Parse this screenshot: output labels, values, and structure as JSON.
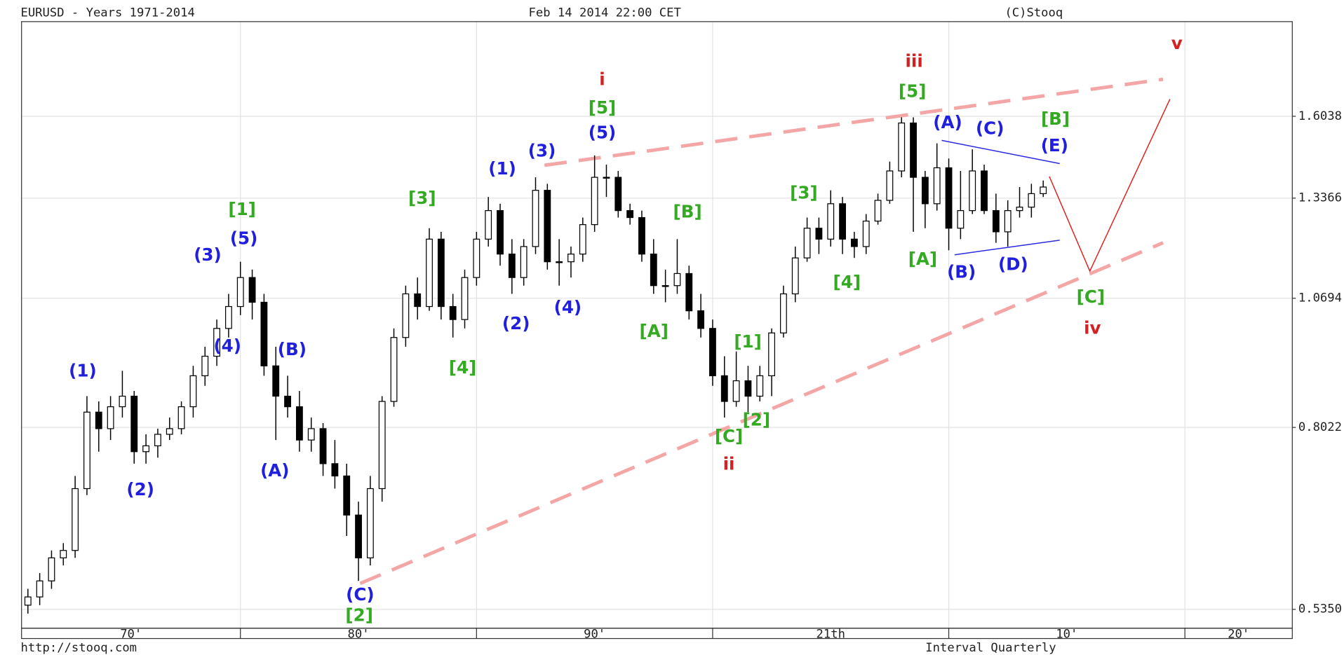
{
  "chart_data": {
    "type": "candlestick",
    "title": "EURUSD - Years 1971-2014",
    "subtitle": "Feb 14 2014 22:00 CET",
    "source": "(C)Stooq",
    "footer_left": "http://stooq.com",
    "footer_right": "Interval Quarterly",
    "log_scale": true,
    "grid": true,
    "up_color": "#ffffff",
    "down_color": "#000000",
    "xlim": [
      1970.73,
      2024.55
    ],
    "xticks": [
      {
        "value": 1970,
        "label": "70'"
      },
      {
        "value": 1980,
        "label": "80'"
      },
      {
        "value": 1990,
        "label": "90'"
      },
      {
        "value": 2000,
        "label": "21th"
      },
      {
        "value": 2010,
        "label": "10'"
      },
      {
        "value": 2020,
        "label": "20'"
      }
    ],
    "ylim": [
      0.513,
      1.98
    ],
    "yticks": [
      {
        "value": 0.535,
        "label": "0.5350"
      },
      0.8022,
      1.0694,
      1.3366,
      1.6038
    ],
    "x": [
      1971,
      1971.5,
      1972,
      1972.5,
      1973,
      1973.5,
      1974,
      1974.5,
      1975,
      1975.5,
      1976,
      1976.5,
      1977,
      1977.5,
      1978,
      1978.5,
      1979,
      1979.5,
      1980,
      1980.5,
      1981,
      1981.5,
      1982,
      1982.5,
      1983,
      1983.5,
      1984,
      1984.5,
      1985,
      1985.5,
      1986,
      1986.5,
      1987,
      1987.5,
      1988,
      1988.5,
      1989,
      1989.5,
      1990,
      1990.5,
      1991,
      1991.5,
      1992,
      1992.5,
      1993,
      1993.5,
      1994,
      1994.5,
      1995,
      1995.5,
      1996,
      1996.5,
      1997,
      1997.5,
      1998,
      1998.5,
      1999,
      1999.5,
      2000,
      2000.5,
      2001,
      2001.5,
      2002,
      2002.5,
      2003,
      2003.5,
      2004,
      2004.5,
      2005,
      2005.5,
      2006,
      2006.5,
      2007,
      2007.5,
      2008,
      2008.5,
      2009,
      2009.5,
      2010,
      2010.5,
      2011,
      2011.5,
      2012,
      2012.5,
      2013,
      2013.5,
      2014
    ],
    "open": [
      0.54,
      0.55,
      0.57,
      0.6,
      0.61,
      0.7,
      0.83,
      0.8,
      0.84,
      0.86,
      0.76,
      0.77,
      0.79,
      0.8,
      0.84,
      0.9,
      0.94,
      1.0,
      1.05,
      1.12,
      1.06,
      0.92,
      0.86,
      0.84,
      0.78,
      0.8,
      0.74,
      0.72,
      0.66,
      0.6,
      0.7,
      0.85,
      0.98,
      1.08,
      1.05,
      1.22,
      1.05,
      1.02,
      1.12,
      1.22,
      1.3,
      1.18,
      1.12,
      1.2,
      1.36,
      1.16,
      1.16,
      1.18,
      1.26,
      1.4,
      1.4,
      1.3,
      1.28,
      1.18,
      1.1,
      1.1,
      1.13,
      1.04,
      1.0,
      0.9,
      0.85,
      0.89,
      0.86,
      0.9,
      0.99,
      1.08,
      1.17,
      1.25,
      1.22,
      1.32,
      1.22,
      1.2,
      1.27,
      1.33,
      1.42,
      1.58,
      1.4,
      1.32,
      1.43,
      1.25,
      1.3,
      1.42,
      1.3,
      1.24,
      1.3,
      1.31,
      1.35
    ],
    "high": [
      0.56,
      0.58,
      0.61,
      0.62,
      0.72,
      0.86,
      0.85,
      0.86,
      0.91,
      0.87,
      0.79,
      0.8,
      0.82,
      0.85,
      0.92,
      0.96,
      1.02,
      1.08,
      1.16,
      1.14,
      1.08,
      0.96,
      0.9,
      0.87,
      0.82,
      0.81,
      0.78,
      0.74,
      0.68,
      0.72,
      0.86,
      1.0,
      1.1,
      1.12,
      1.25,
      1.24,
      1.08,
      1.14,
      1.24,
      1.34,
      1.32,
      1.22,
      1.22,
      1.4,
      1.38,
      1.22,
      1.2,
      1.28,
      1.47,
      1.44,
      1.42,
      1.32,
      1.3,
      1.22,
      1.14,
      1.22,
      1.15,
      1.08,
      1.02,
      0.94,
      0.95,
      0.92,
      0.92,
      1.0,
      1.1,
      1.2,
      1.28,
      1.28,
      1.36,
      1.34,
      1.24,
      1.29,
      1.35,
      1.45,
      1.6,
      1.6,
      1.42,
      1.51,
      1.46,
      1.42,
      1.49,
      1.44,
      1.35,
      1.33,
      1.37,
      1.38,
      1.39
    ],
    "low": [
      0.53,
      0.54,
      0.56,
      0.59,
      0.6,
      0.69,
      0.76,
      0.78,
      0.82,
      0.74,
      0.74,
      0.75,
      0.78,
      0.79,
      0.82,
      0.88,
      0.92,
      0.98,
      1.03,
      1.02,
      0.9,
      0.78,
      0.82,
      0.76,
      0.76,
      0.72,
      0.7,
      0.63,
      0.57,
      0.59,
      0.68,
      0.84,
      0.96,
      1.02,
      1.04,
      1.02,
      0.98,
      1.0,
      1.1,
      1.2,
      1.15,
      1.08,
      1.1,
      1.18,
      1.14,
      1.1,
      1.12,
      1.16,
      1.24,
      1.34,
      1.28,
      1.26,
      1.16,
      1.08,
      1.06,
      1.08,
      1.02,
      0.98,
      0.88,
      0.82,
      0.84,
      0.83,
      0.85,
      0.86,
      0.98,
      1.06,
      1.16,
      1.18,
      1.2,
      1.18,
      1.17,
      1.18,
      1.26,
      1.32,
      1.4,
      1.24,
      1.25,
      1.3,
      1.19,
      1.22,
      1.29,
      1.29,
      1.21,
      1.2,
      1.28,
      1.28,
      1.34
    ],
    "close": [
      0.55,
      0.57,
      0.6,
      0.61,
      0.7,
      0.83,
      0.8,
      0.84,
      0.86,
      0.76,
      0.77,
      0.79,
      0.8,
      0.84,
      0.9,
      0.94,
      1.0,
      1.05,
      1.12,
      1.06,
      0.92,
      0.86,
      0.84,
      0.78,
      0.8,
      0.74,
      0.72,
      0.66,
      0.6,
      0.7,
      0.85,
      0.98,
      1.08,
      1.05,
      1.22,
      1.05,
      1.02,
      1.12,
      1.22,
      1.3,
      1.18,
      1.12,
      1.2,
      1.36,
      1.16,
      1.16,
      1.18,
      1.26,
      1.4,
      1.4,
      1.3,
      1.28,
      1.18,
      1.1,
      1.1,
      1.13,
      1.04,
      1.0,
      0.9,
      0.85,
      0.89,
      0.86,
      0.9,
      0.99,
      1.08,
      1.17,
      1.25,
      1.22,
      1.32,
      1.22,
      1.2,
      1.27,
      1.33,
      1.42,
      1.58,
      1.4,
      1.32,
      1.43,
      1.25,
      1.3,
      1.42,
      1.3,
      1.24,
      1.3,
      1.31,
      1.35,
      1.37
    ],
    "annotations": [
      {
        "text": "(1)",
        "color": "#1f1fdd"
      },
      {
        "text": "(2)",
        "color": "#1f1fdd"
      },
      {
        "text": "(3)",
        "color": "#1f1fdd"
      },
      {
        "text": "(5)",
        "color": "#1f1fdd"
      },
      {
        "text": "(4)",
        "color": "#1f1fdd"
      },
      {
        "text": "(B)",
        "color": "#1f1fdd"
      },
      {
        "text": "(A)",
        "color": "#1f1fdd"
      },
      {
        "text": "(C)",
        "color": "#1f1fdd"
      },
      {
        "text": "(1)",
        "color": "#1f1fdd"
      },
      {
        "text": "(3)",
        "color": "#1f1fdd"
      },
      {
        "text": "(5)",
        "color": "#1f1fdd"
      },
      {
        "text": "(2)",
        "color": "#1f1fdd"
      },
      {
        "text": "(4)",
        "color": "#1f1fdd"
      },
      {
        "text": "(A)",
        "color": "#1f1fdd"
      },
      {
        "text": "(C)",
        "color": "#1f1fdd"
      },
      {
        "text": "(E)",
        "color": "#1f1fdd"
      },
      {
        "text": "(B)",
        "color": "#1f1fdd"
      },
      {
        "text": "(D)",
        "color": "#1f1fdd"
      },
      {
        "text": "[1]",
        "color": "#33aa22"
      },
      {
        "text": "[3]",
        "color": "#33aa22"
      },
      {
        "text": "[4]",
        "color": "#33aa22"
      },
      {
        "text": "[2]",
        "color": "#33aa22"
      },
      {
        "text": "[5]",
        "color": "#33aa22"
      },
      {
        "text": "[B]",
        "color": "#33aa22"
      },
      {
        "text": "[A]",
        "color": "#33aa22"
      },
      {
        "text": "[1]",
        "color": "#33aa22"
      },
      {
        "text": "[C]",
        "color": "#33aa22"
      },
      {
        "text": "[2]",
        "color": "#33aa22"
      },
      {
        "text": "[3]",
        "color": "#33aa22"
      },
      {
        "text": "[4]",
        "color": "#33aa22"
      },
      {
        "text": "[5]",
        "color": "#33aa22"
      },
      {
        "text": "[A]",
        "color": "#33aa22"
      },
      {
        "text": "[B]",
        "color": "#33aa22"
      },
      {
        "text": "[C]",
        "color": "#33aa22"
      },
      {
        "text": "i",
        "color": "#d42020"
      },
      {
        "text": "ii",
        "color": "#d42020"
      },
      {
        "text": "iii",
        "color": "#d42020"
      },
      {
        "text": "iv",
        "color": "#d42020"
      },
      {
        "text": "v",
        "color": "#d42020"
      }
    ]
  }
}
